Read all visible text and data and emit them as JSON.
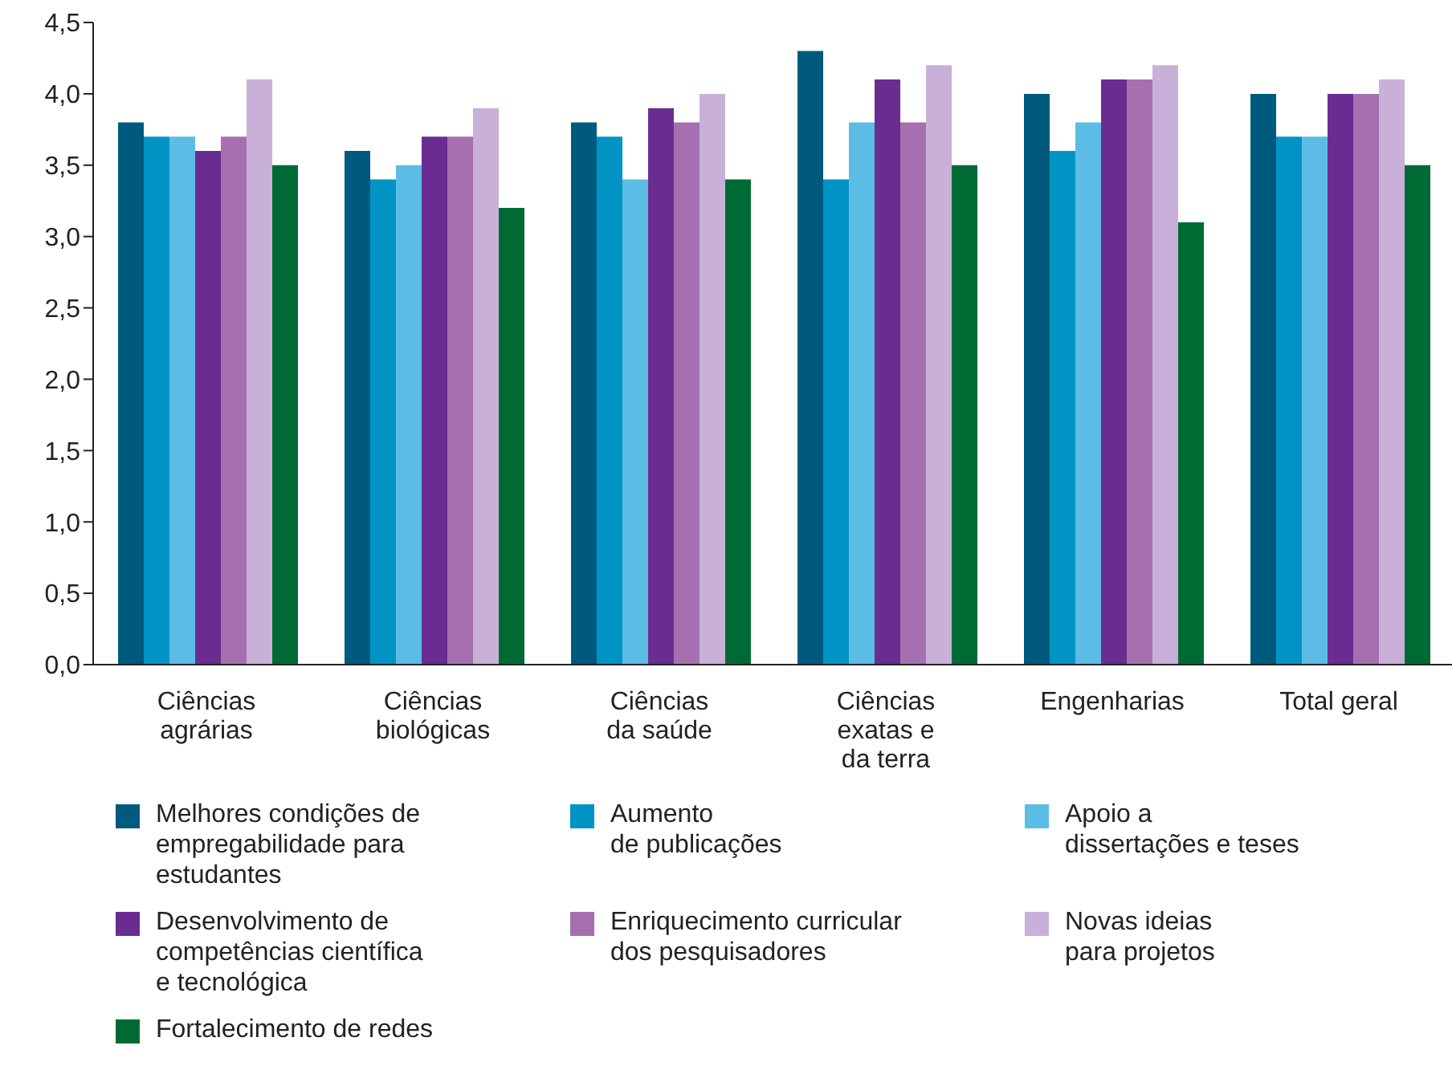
{
  "chart_data": {
    "type": "bar",
    "categories": [
      "Ciências\nagrárias",
      "Ciências\nbiológicas",
      "Ciências\nda saúde",
      "Ciências\nexatas e\nda terra",
      "Engenharias",
      "Total geral"
    ],
    "series": [
      {
        "name": "Melhores condições de\nempregabilidade para\nestudantes",
        "color": "#005a7e",
        "values": [
          3.8,
          3.6,
          3.8,
          4.3,
          4.0,
          4.0
        ]
      },
      {
        "name": "Aumento\nde publicações",
        "color": "#0094c4",
        "values": [
          3.7,
          3.4,
          3.7,
          3.4,
          3.6,
          3.7
        ]
      },
      {
        "name": "Apoio a\ndissertações e teses",
        "color": "#5bbde6",
        "values": [
          3.7,
          3.5,
          3.4,
          3.8,
          3.8,
          3.7
        ]
      },
      {
        "name": "Desenvolvimento de\ncompetências científica\ne tecnológica",
        "color": "#6a2c91",
        "values": [
          3.6,
          3.7,
          3.9,
          4.1,
          4.1,
          4.0
        ]
      },
      {
        "name": "Enriquecimento curricular\ndos pesquisadores",
        "color": "#a66fb0",
        "values": [
          3.7,
          3.7,
          3.8,
          3.8,
          4.1,
          4.0
        ]
      },
      {
        "name": "Novas ideias\npara projetos",
        "color": "#c9b0d8",
        "values": [
          4.1,
          3.9,
          4.0,
          4.2,
          4.2,
          4.1
        ]
      },
      {
        "name": "Fortalecimento de redes",
        "color": "#006a35",
        "values": [
          3.5,
          3.2,
          3.4,
          3.5,
          3.1,
          3.5
        ]
      }
    ],
    "ylim": [
      0,
      4.5
    ],
    "yticks": [
      {
        "value": 0,
        "label": "0,0"
      },
      {
        "value": 0.5,
        "label": "0,5"
      },
      {
        "value": 1,
        "label": "1,0"
      },
      {
        "value": 1.5,
        "label": "1,5"
      },
      {
        "value": 2,
        "label": "2,0"
      },
      {
        "value": 2.5,
        "label": "2,5"
      },
      {
        "value": 3,
        "label": "3,0"
      },
      {
        "value": 3.5,
        "label": "3,5"
      },
      {
        "value": 4,
        "label": "4,0"
      },
      {
        "value": 4.5,
        "label": "4,5"
      }
    ],
    "grid": false,
    "legend": "bottom"
  }
}
